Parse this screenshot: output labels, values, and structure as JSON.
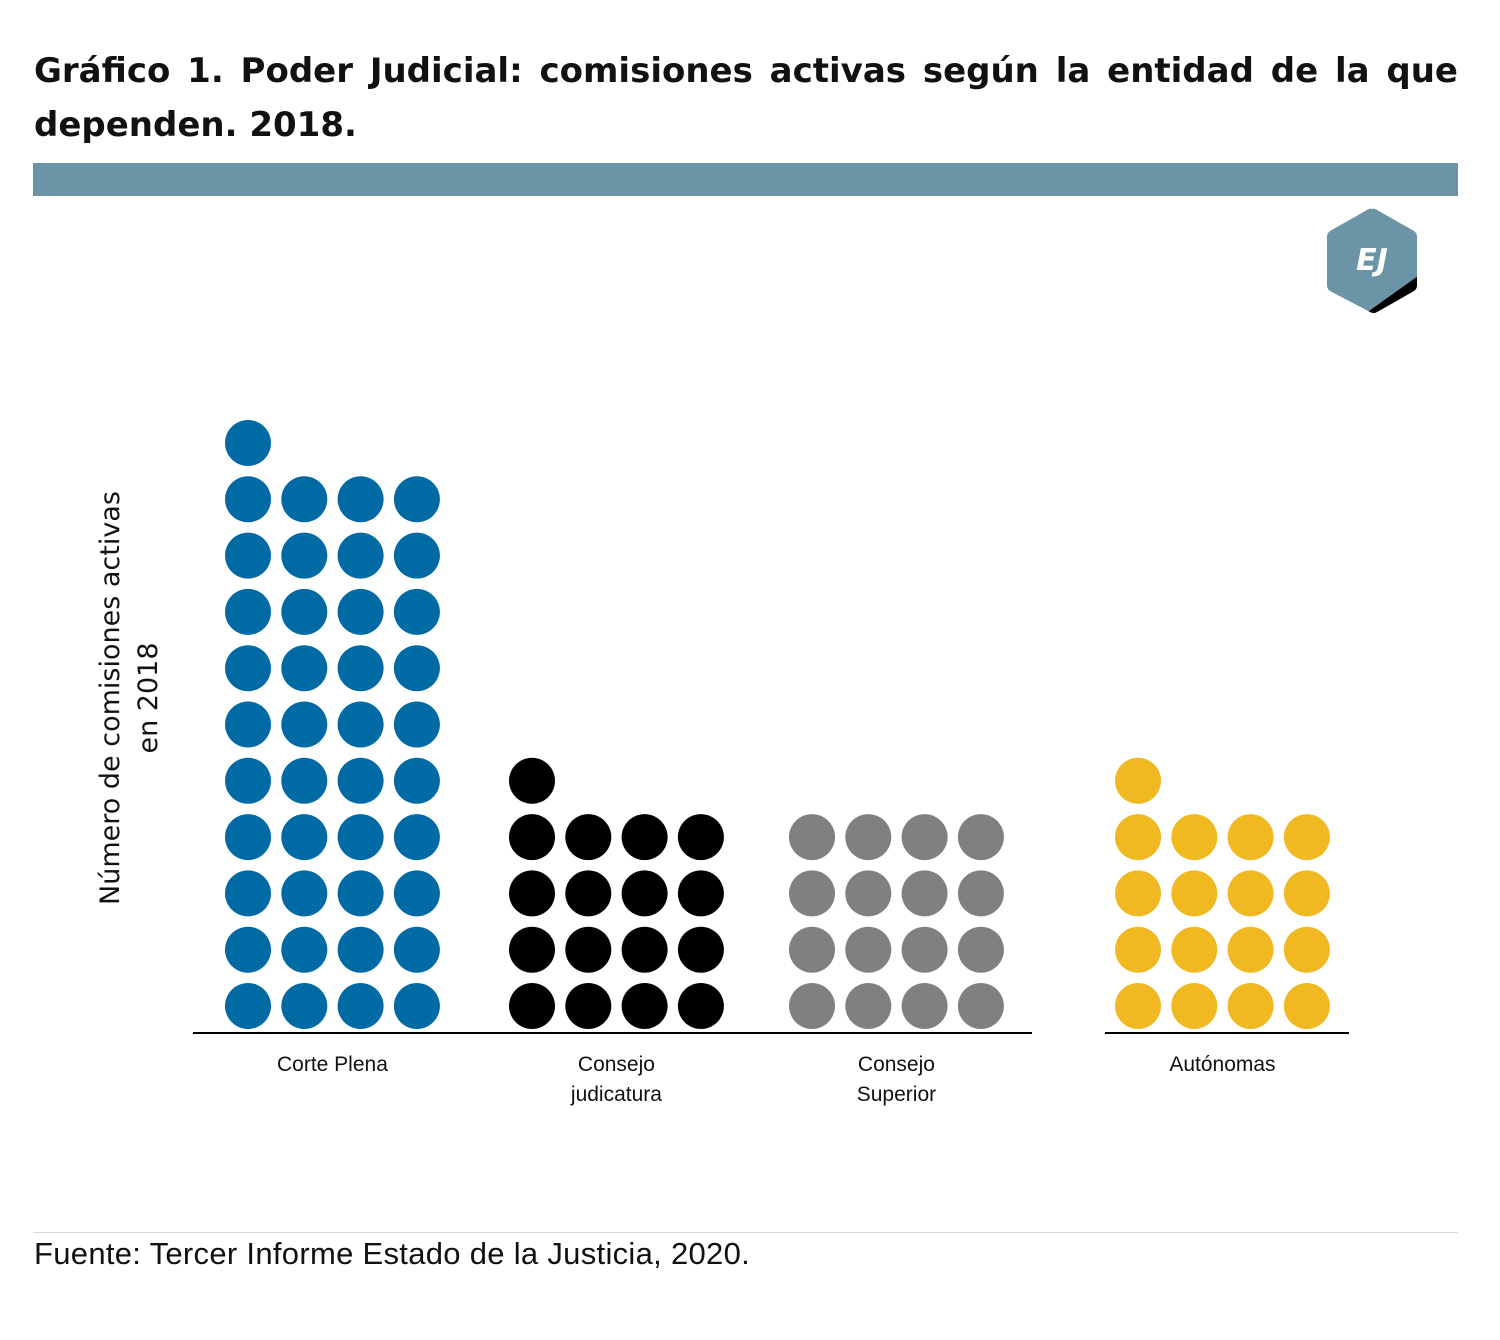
{
  "title": "Gráfico 1. Poder Judicial: comisiones activas según la entidad de la que dependen. 2018.",
  "banner_color": "#6b95a6",
  "logo": {
    "text": "EJ",
    "icon": "ej-hexagon-logo",
    "fill": "#6b95a6",
    "accent": "#000000"
  },
  "footer": "Fuente: Tercer Informe Estado de la Justicia, 2020.",
  "chart_data": {
    "type": "dot-plot",
    "title": "Gráfico 1. Poder Judicial: comisiones activas según la entidad de la que dependen. 2018.",
    "ylabel": "Número de comisiones activas en 2018",
    "dots_per_row": 4,
    "grid": false,
    "legend": "none",
    "categories": [
      "Corte Plena",
      "Consejo judicatura",
      "Consejo Superior",
      "Autónomas"
    ],
    "category_label_lines": [
      [
        "Corte Plena"
      ],
      [
        "Consejo",
        "judicatura"
      ],
      [
        "Consejo",
        "Superior"
      ],
      [
        "Autónomas"
      ]
    ],
    "values": [
      41,
      17,
      16,
      17
    ],
    "colors": [
      "#006aa5",
      "#000000",
      "#808080",
      "#f0b922"
    ]
  }
}
